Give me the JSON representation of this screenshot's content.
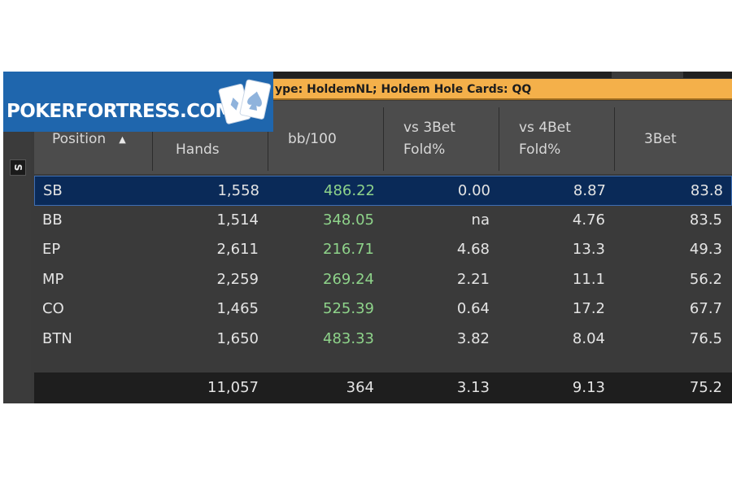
{
  "logo": {
    "text": "POKERFORTRESS.COM"
  },
  "filter_bar": {
    "text": "ype: HoldemNL; Holdem Hole Cards: QQ"
  },
  "side_button": {
    "label": "S"
  },
  "columns": [
    {
      "key": "position",
      "label_lines": [
        "Position"
      ],
      "sorted": true,
      "sort_icon": "sort-ascending-icon"
    },
    {
      "key": "hands",
      "label_lines": [
        "",
        "Hands"
      ]
    },
    {
      "key": "bb100",
      "label_lines": [
        "bb/100"
      ]
    },
    {
      "key": "vs3bet_fold",
      "label_lines": [
        "vs 3Bet",
        "Fold%"
      ]
    },
    {
      "key": "vs4bet_fold",
      "label_lines": [
        "vs 4Bet",
        "Fold%"
      ]
    },
    {
      "key": "threebet",
      "label_lines": [
        "3Bet"
      ]
    }
  ],
  "rows": [
    {
      "position": "SB",
      "hands": "1,558",
      "bb100": "486.22",
      "vs3bet_fold": "0.00",
      "vs4bet_fold": "8.87",
      "threebet": "83.8",
      "selected": true
    },
    {
      "position": "BB",
      "hands": "1,514",
      "bb100": "348.05",
      "vs3bet_fold": "na",
      "vs4bet_fold": "4.76",
      "threebet": "83.5"
    },
    {
      "position": "EP",
      "hands": "2,611",
      "bb100": "216.71",
      "vs3bet_fold": "4.68",
      "vs4bet_fold": "13.3",
      "threebet": "49.3"
    },
    {
      "position": "MP",
      "hands": "2,259",
      "bb100": "269.24",
      "vs3bet_fold": "2.21",
      "vs4bet_fold": "11.1",
      "threebet": "56.2"
    },
    {
      "position": "CO",
      "hands": "1,465",
      "bb100": "525.39",
      "vs3bet_fold": "0.64",
      "vs4bet_fold": "17.2",
      "threebet": "67.7"
    },
    {
      "position": "BTN",
      "hands": "1,650",
      "bb100": "483.33",
      "vs3bet_fold": "3.82",
      "vs4bet_fold": "8.04",
      "threebet": "76.5"
    }
  ],
  "totals": {
    "hands": "11,057",
    "bb100": "364",
    "vs3bet_fold": "3.13",
    "vs4bet_fold": "9.13",
    "threebet": "75.2"
  },
  "colors": {
    "positive_value": "#8ed38a",
    "selected_row": "#0a2a58",
    "filter_bar": "#f4b04a",
    "logo_bg": "#1f66ad"
  }
}
